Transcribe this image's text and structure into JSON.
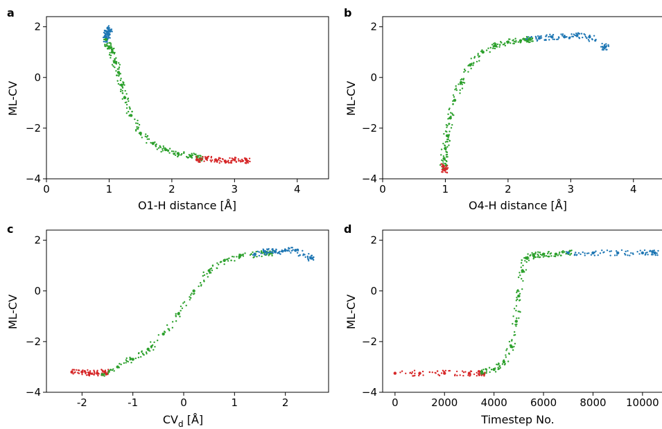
{
  "colors": {
    "blue": "#1f77b4",
    "green": "#2ca02c",
    "red": "#d62728"
  },
  "chart_data": [
    {
      "type": "scatter",
      "panel": "a",
      "xlabel": "O1-H distance [Å]",
      "ylabel": "ML-CV",
      "xlim": [
        0,
        4.5
      ],
      "ylim": [
        -4,
        2.4
      ],
      "xticks": [
        0,
        1,
        2,
        3,
        4
      ],
      "yticks": [
        -4,
        -2,
        0,
        2
      ],
      "grid": false,
      "series": [
        {
          "color": "blue",
          "points": [
            [
              0.95,
              1.6
            ],
            [
              0.97,
              1.8
            ],
            [
              1.0,
              1.7
            ],
            [
              0.98,
              1.95
            ],
            [
              0.96,
              1.5
            ]
          ]
        },
        {
          "color": "green",
          "points": [
            [
              0.95,
              1.5
            ],
            [
              1.0,
              1.2
            ],
            [
              1.05,
              1.0
            ],
            [
              1.1,
              0.6
            ],
            [
              1.15,
              0.2
            ],
            [
              1.2,
              -0.3
            ],
            [
              1.25,
              -0.8
            ],
            [
              1.35,
              -1.5
            ],
            [
              1.5,
              -2.2
            ],
            [
              1.7,
              -2.6
            ],
            [
              1.9,
              -2.85
            ],
            [
              2.1,
              -3.0
            ],
            [
              2.3,
              -3.1
            ],
            [
              2.45,
              -3.2
            ]
          ]
        },
        {
          "color": "red",
          "points": [
            [
              2.4,
              -3.25
            ],
            [
              2.55,
              -3.2
            ],
            [
              2.7,
              -3.25
            ],
            [
              2.85,
              -3.3
            ],
            [
              3.0,
              -3.25
            ],
            [
              3.2,
              -3.3
            ]
          ]
        }
      ]
    },
    {
      "type": "scatter",
      "panel": "b",
      "xlabel": "O4-H distance [Å]",
      "ylabel": "ML-CV",
      "xlim": [
        0,
        4.5
      ],
      "ylim": [
        -4,
        2.4
      ],
      "xticks": [
        0,
        1,
        2,
        3,
        4
      ],
      "yticks": [
        -4,
        -2,
        0,
        2
      ],
      "grid": false,
      "series": [
        {
          "color": "blue",
          "points": [
            [
              2.3,
              1.5
            ],
            [
              2.5,
              1.55
            ],
            [
              2.7,
              1.6
            ],
            [
              2.9,
              1.6
            ],
            [
              3.1,
              1.65
            ],
            [
              3.3,
              1.6
            ],
            [
              3.55,
              1.2
            ]
          ]
        },
        {
          "color": "green",
          "points": [
            [
              0.97,
              -3.6
            ],
            [
              0.98,
              -3.2
            ],
            [
              1.0,
              -2.8
            ],
            [
              1.03,
              -2.3
            ],
            [
              1.08,
              -1.6
            ],
            [
              1.15,
              -0.9
            ],
            [
              1.25,
              -0.2
            ],
            [
              1.4,
              0.5
            ],
            [
              1.6,
              1.0
            ],
            [
              1.8,
              1.25
            ],
            [
              2.0,
              1.4
            ],
            [
              2.2,
              1.45
            ],
            [
              2.35,
              1.5
            ]
          ]
        },
        {
          "color": "red",
          "points": [
            [
              0.97,
              -3.5
            ],
            [
              0.99,
              -3.65
            ]
          ]
        }
      ]
    },
    {
      "type": "scatter",
      "panel": "c",
      "xlabel": "CVd [Å]",
      "ylabel": "ML-CV",
      "xlim": [
        -2.7,
        2.85
      ],
      "ylim": [
        -4,
        2.4
      ],
      "xticks": [
        -2,
        -1,
        0,
        1,
        2
      ],
      "yticks": [
        -4,
        -2,
        0,
        2
      ],
      "grid": false,
      "series": [
        {
          "color": "red",
          "points": [
            [
              -2.2,
              -3.2
            ],
            [
              -2.0,
              -3.2
            ],
            [
              -1.85,
              -3.25
            ],
            [
              -1.7,
              -3.25
            ],
            [
              -1.55,
              -3.2
            ]
          ]
        },
        {
          "color": "green",
          "points": [
            [
              -1.6,
              -3.3
            ],
            [
              -1.3,
              -3.0
            ],
            [
              -1.0,
              -2.7
            ],
            [
              -0.7,
              -2.3
            ],
            [
              -0.4,
              -1.7
            ],
            [
              -0.1,
              -0.9
            ],
            [
              0.2,
              0.0
            ],
            [
              0.5,
              0.8
            ],
            [
              0.8,
              1.2
            ],
            [
              1.1,
              1.35
            ],
            [
              1.4,
              1.45
            ],
            [
              1.7,
              1.5
            ]
          ]
        },
        {
          "color": "blue",
          "points": [
            [
              1.4,
              1.45
            ],
            [
              1.6,
              1.55
            ],
            [
              1.8,
              1.55
            ],
            [
              2.0,
              1.6
            ],
            [
              2.2,
              1.6
            ],
            [
              2.5,
              1.3
            ]
          ]
        }
      ]
    },
    {
      "type": "scatter",
      "panel": "d",
      "xlabel": "Timestep No.",
      "ylabel": "ML-CV",
      "xlim": [
        -500,
        10900
      ],
      "ylim": [
        -4,
        2.4
      ],
      "xticks": [
        0,
        2000,
        4000,
        6000,
        8000,
        10000
      ],
      "yticks": [
        -4,
        -2,
        0,
        2
      ],
      "grid": false,
      "series": [
        {
          "color": "red",
          "points": [
            [
              0,
              -3.25
            ],
            [
              1000,
              -3.25
            ],
            [
              2000,
              -3.25
            ],
            [
              3000,
              -3.25
            ],
            [
              3500,
              -3.25
            ]
          ]
        },
        {
          "color": "green",
          "points": [
            [
              3500,
              -3.2
            ],
            [
              4000,
              -3.1
            ],
            [
              4400,
              -2.8
            ],
            [
              4700,
              -2.2
            ],
            [
              4900,
              -1.2
            ],
            [
              5000,
              -0.2
            ],
            [
              5150,
              0.8
            ],
            [
              5300,
              1.3
            ],
            [
              5600,
              1.4
            ],
            [
              6000,
              1.45
            ],
            [
              6500,
              1.45
            ],
            [
              7000,
              1.5
            ]
          ]
        },
        {
          "color": "blue",
          "points": [
            [
              7000,
              1.5
            ],
            [
              8000,
              1.5
            ],
            [
              9000,
              1.5
            ],
            [
              10000,
              1.5
            ],
            [
              10500,
              1.5
            ]
          ]
        }
      ]
    }
  ]
}
